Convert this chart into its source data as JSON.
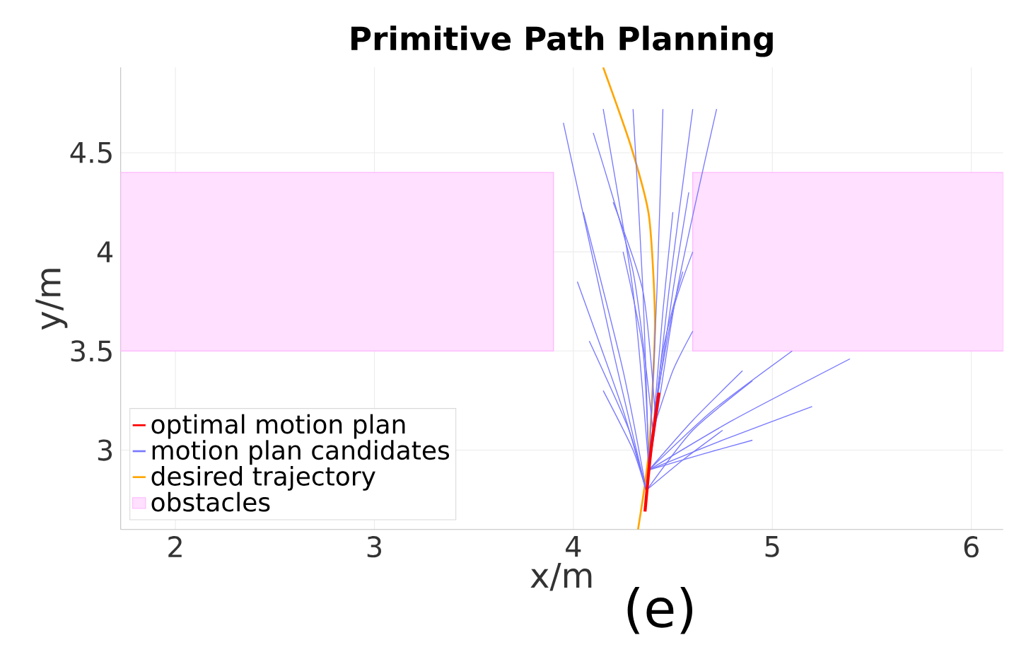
{
  "chart_data": {
    "type": "line",
    "title": "Primitive Path Planning",
    "xlabel": "x/m",
    "ylabel": "y/m",
    "annotations": [
      "(e)"
    ],
    "xlim": [
      1.725,
      6.16
    ],
    "ylim": [
      2.6,
      4.93
    ],
    "xticks": [
      2,
      3,
      4,
      5,
      6
    ],
    "yticks": [
      3,
      3.5,
      4,
      4.5
    ],
    "grid": true,
    "legend": "bottom left",
    "marker": "none",
    "series": [
      {
        "name": "optimal motion plan",
        "color": "#ff0000",
        "x": [
          4.36,
          4.39,
          4.43
        ],
        "values": [
          2.69,
          3.0,
          3.29
        ]
      },
      {
        "name": "motion plan candidates",
        "color": "#7878ff",
        "x": [
          4.37,
          4.2,
          3.95
        ],
        "values": [
          2.78,
          3.5,
          4.65
        ]
      },
      {
        "color": "#7878ff",
        "x": [
          4.37,
          4.25,
          4.05
        ],
        "values": [
          2.78,
          3.4,
          4.2
        ]
      },
      {
        "color": "#7878ff",
        "x": [
          4.37,
          4.25,
          4.02
        ],
        "values": [
          2.78,
          3.2,
          3.85
        ]
      },
      {
        "color": "#7878ff",
        "x": [
          4.37,
          4.28,
          4.08
        ],
        "values": [
          2.78,
          3.1,
          3.55
        ]
      },
      {
        "color": "#7878ff",
        "x": [
          4.37,
          4.3,
          4.15
        ],
        "values": [
          2.78,
          3.0,
          3.3
        ]
      },
      {
        "color": "#7878ff",
        "x": [
          4.38,
          4.3,
          4.15
        ],
        "values": [
          2.9,
          3.8,
          4.72
        ]
      },
      {
        "color": "#7878ff",
        "x": [
          4.38,
          4.35,
          4.3
        ],
        "values": [
          2.9,
          3.8,
          4.72
        ]
      },
      {
        "color": "#7878ff",
        "x": [
          4.38,
          4.42,
          4.45
        ],
        "values": [
          2.9,
          3.8,
          4.72
        ]
      },
      {
        "color": "#7878ff",
        "x": [
          4.38,
          4.48,
          4.6
        ],
        "values": [
          2.9,
          3.8,
          4.72
        ]
      },
      {
        "color": "#7878ff",
        "x": [
          4.38,
          4.52,
          4.72
        ],
        "values": [
          2.9,
          3.8,
          4.72
        ]
      },
      {
        "color": "#7878ff",
        "x": [
          4.4,
          4.3,
          4.1
        ],
        "values": [
          3.1,
          3.9,
          4.6
        ]
      },
      {
        "color": "#7878ff",
        "x": [
          4.4,
          4.5,
          4.58
        ],
        "values": [
          3.1,
          3.8,
          4.3
        ]
      },
      {
        "color": "#7878ff",
        "x": [
          4.4,
          4.45,
          4.5
        ],
        "values": [
          3.1,
          3.7,
          4.2
        ]
      },
      {
        "color": "#7878ff",
        "x": [
          4.41,
          4.35,
          4.2
        ],
        "values": [
          3.2,
          3.8,
          4.25
        ]
      },
      {
        "color": "#7878ff",
        "x": [
          4.41,
          4.5,
          4.6
        ],
        "values": [
          3.2,
          3.7,
          4.0
        ]
      },
      {
        "color": "#7878ff",
        "x": [
          4.38,
          4.6,
          4.85
        ],
        "values": [
          2.9,
          3.15,
          3.4
        ]
      },
      {
        "color": "#7878ff",
        "x": [
          4.38,
          4.7,
          5.1
        ],
        "values": [
          2.9,
          3.2,
          3.5
        ]
      },
      {
        "color": "#7878ff",
        "x": [
          4.38,
          4.8,
          5.39
        ],
        "values": [
          2.9,
          3.15,
          3.46
        ]
      },
      {
        "color": "#7878ff",
        "x": [
          4.38,
          4.75,
          5.2
        ],
        "values": [
          2.9,
          3.05,
          3.22
        ]
      },
      {
        "color": "#7878ff",
        "x": [
          4.38,
          4.65,
          4.9
        ],
        "values": [
          2.9,
          2.98,
          3.05
        ]
      },
      {
        "color": "#7878ff",
        "x": [
          4.37,
          4.6,
          4.9
        ],
        "values": [
          2.8,
          3.1,
          3.35
        ]
      },
      {
        "color": "#7878ff",
        "x": [
          4.37,
          4.55,
          4.75
        ],
        "values": [
          2.8,
          2.95,
          3.1
        ]
      },
      {
        "color": "#7878ff",
        "x": [
          4.4,
          4.5,
          4.6
        ],
        "values": [
          3.1,
          3.4,
          3.6
        ]
      },
      {
        "color": "#7878ff",
        "x": [
          4.38,
          4.35,
          4.25
        ],
        "values": [
          2.9,
          3.5,
          4.0
        ]
      },
      {
        "color": "#7878ff",
        "x": [
          4.38,
          4.45,
          4.55
        ],
        "values": [
          2.9,
          3.5,
          3.9
        ]
      },
      {
        "name": "desired trajectory",
        "color": "#ffa500",
        "x": [
          4.325,
          4.38,
          4.41,
          4.38,
          4.29,
          4.15
        ],
        "values": [
          2.6,
          3.0,
          3.64,
          4.18,
          4.53,
          4.93
        ]
      },
      {
        "name": "obstacles",
        "type": "area",
        "color": "#ffe0ff",
        "x": [
          1.725,
          3.9,
          3.9,
          1.725
        ],
        "values": [
          4.4,
          4.4,
          3.5,
          3.5
        ]
      },
      {
        "type": "area",
        "color": "#ffe0ff",
        "x": [
          4.6,
          6.16,
          6.16,
          4.6
        ],
        "values": [
          4.4,
          4.4,
          3.5,
          3.5
        ]
      }
    ]
  }
}
